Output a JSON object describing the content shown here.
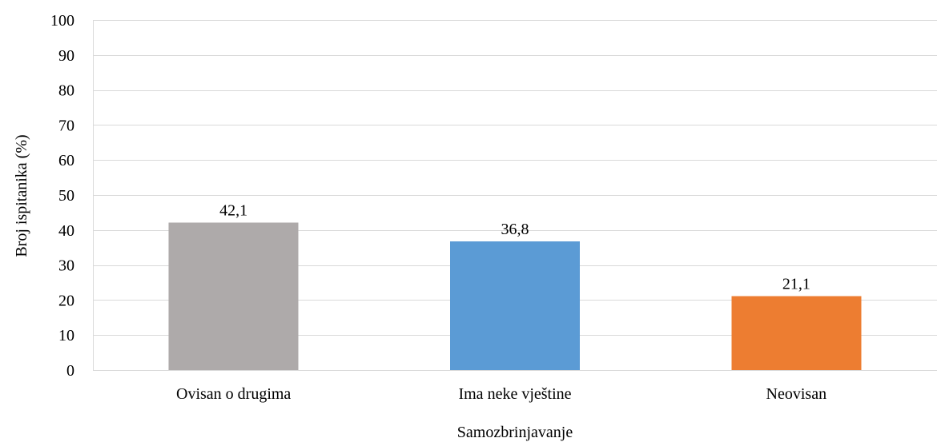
{
  "chart_data": {
    "type": "bar",
    "categories": [
      "Ovisan o drugima",
      "Ima neke vještine",
      "Neovisan"
    ],
    "values": [
      42.1,
      36.8,
      21.1
    ],
    "data_labels": [
      "42,1",
      "36,8",
      "21,1"
    ],
    "bar_colors": [
      "#aeaaaa",
      "#5b9bd5",
      "#ed7d31"
    ],
    "xlabel": "Samozbrinjavanje",
    "ylabel": "Broj ispitanika (%)",
    "ylim": [
      0,
      100
    ],
    "yticks": [
      0,
      10,
      20,
      30,
      40,
      50,
      60,
      70,
      80,
      90,
      100
    ],
    "grid": true,
    "legend": "none"
  }
}
